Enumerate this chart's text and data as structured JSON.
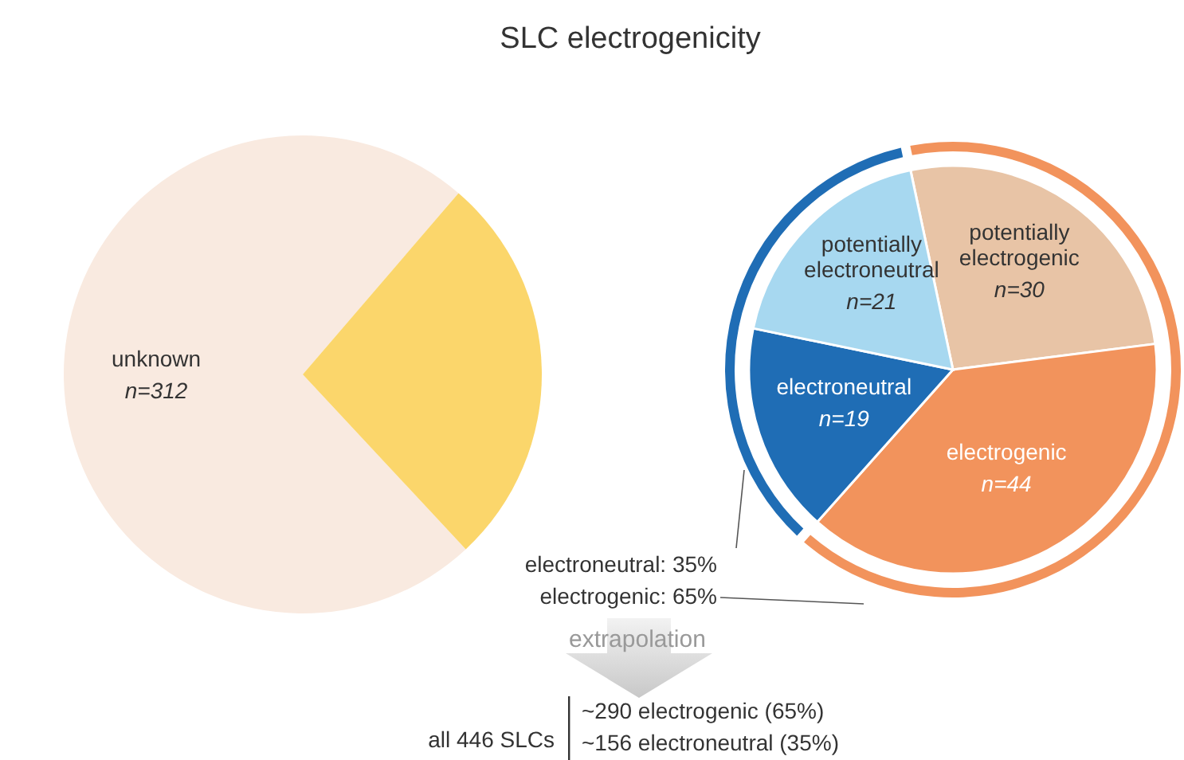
{
  "chart_data": [
    {
      "type": "pie",
      "title": "SLC electrogenicity",
      "categories": [
        "unknown",
        null
      ],
      "values": [
        312,
        114
      ],
      "colors": [
        "#f9eae0",
        "#fbd66b"
      ],
      "value_labels": [
        "n=312",
        null
      ],
      "annotations": [
        "extrapolation",
        "all 446 SLCs",
        "~290 electrogenic (65%)",
        "~156 electroneutral (35%)"
      ]
    },
    {
      "type": "pie",
      "categories": [
        "potentially electrogenic",
        "electrogenic",
        "electroneutral",
        "potentially electroneutral"
      ],
      "values": [
        30,
        44,
        19,
        21
      ],
      "colors": [
        "#e8c4a6",
        "#f2935c",
        "#1f6db5",
        "#a7d8f0"
      ],
      "value_labels": [
        "n=30",
        "n=44",
        "n=19",
        "n=21"
      ]
    },
    {
      "type": "donut",
      "categories": [
        "electroneutral",
        "electrogenic"
      ],
      "values": [
        35,
        65
      ],
      "colors": [
        "#1f6db5",
        "#f2935c"
      ],
      "value_labels": [
        "35%",
        "65%"
      ]
    }
  ]
}
